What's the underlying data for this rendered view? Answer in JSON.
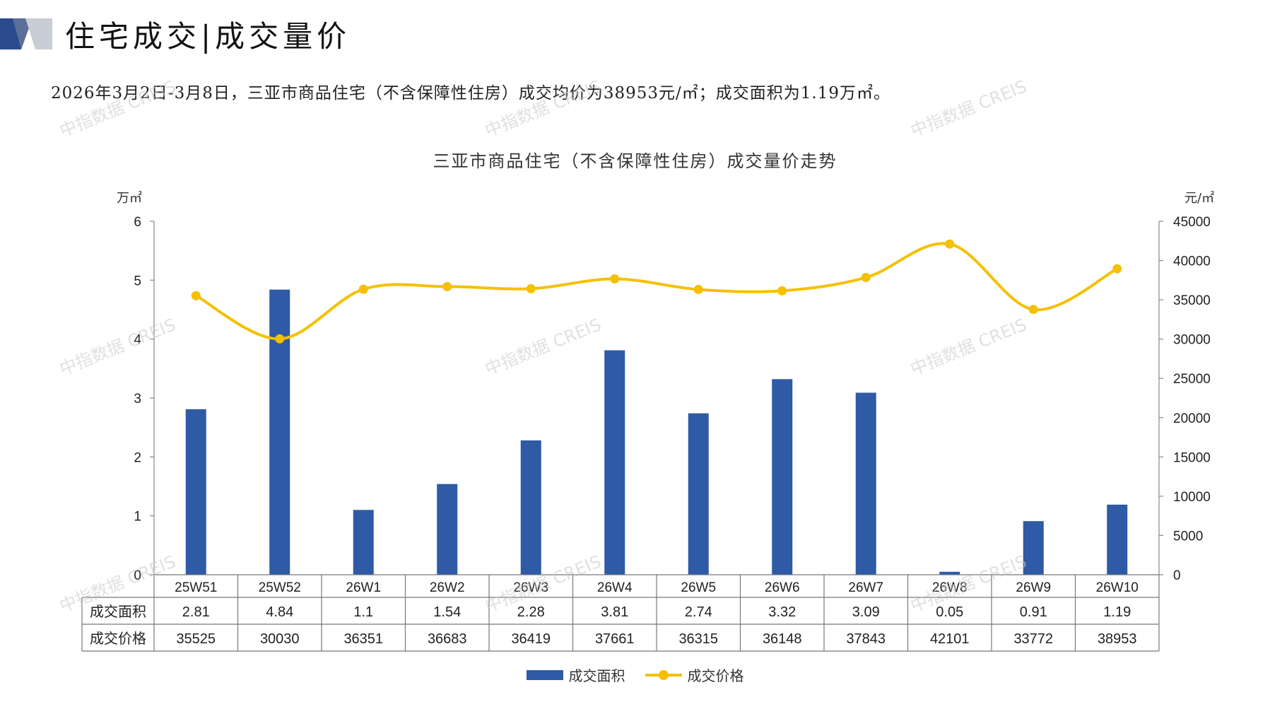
{
  "header": {
    "title": "住宅成交|成交量价",
    "summary": "2026年3月2日-3月8日，三亚市商品住宅（不含保障性住房）成交均价为38953元/㎡；成交面积为1.19万㎡。"
  },
  "watermark": {
    "text": "中指数据 CREIS"
  },
  "colors": {
    "bar": "#2e5aa6",
    "line": "#f5c000",
    "logo_dark": "#2b4a8c",
    "logo_light": "#c9ced6"
  },
  "chart_data": {
    "type": "bar",
    "title": "三亚市商品住宅（不含保障性住房）成交量价走势",
    "y_left_unit": "万㎡",
    "y_right_unit": "元/㎡",
    "y_left_ticks": [
      "0",
      "1",
      "2",
      "3",
      "4",
      "5",
      "6"
    ],
    "y_right_ticks": [
      "0",
      "5000",
      "10000",
      "15000",
      "20000",
      "25000",
      "30000",
      "35000",
      "40000",
      "45000"
    ],
    "ylim_left": [
      0,
      6
    ],
    "ylim_right": [
      0,
      45000
    ],
    "categories": [
      "25W51",
      "25W52",
      "26W1",
      "26W2",
      "26W3",
      "26W4",
      "26W5",
      "26W6",
      "26W7",
      "26W8",
      "26W9",
      "26W10"
    ],
    "series": [
      {
        "name": "成交面积",
        "type": "bar",
        "axis": "left",
        "values": [
          2.81,
          4.84,
          1.1,
          1.54,
          2.28,
          3.81,
          2.74,
          3.32,
          3.09,
          0.05,
          0.91,
          1.19
        ],
        "labels": [
          "2.81",
          "4.84",
          "1.1",
          "1.54",
          "2.28",
          "3.81",
          "2.74",
          "3.32",
          "3.09",
          "0.05",
          "0.91",
          "1.19"
        ]
      },
      {
        "name": "成交价格",
        "type": "line",
        "axis": "right",
        "values": [
          35525,
          30030,
          36351,
          36683,
          36419,
          37661,
          36315,
          36148,
          37843,
          42101,
          33772,
          38953
        ],
        "labels": [
          "35525",
          "30030",
          "36351",
          "36683",
          "36419",
          "37661",
          "36315",
          "36148",
          "37843",
          "42101",
          "33772",
          "38953"
        ]
      }
    ],
    "legend_position": "bottom"
  }
}
